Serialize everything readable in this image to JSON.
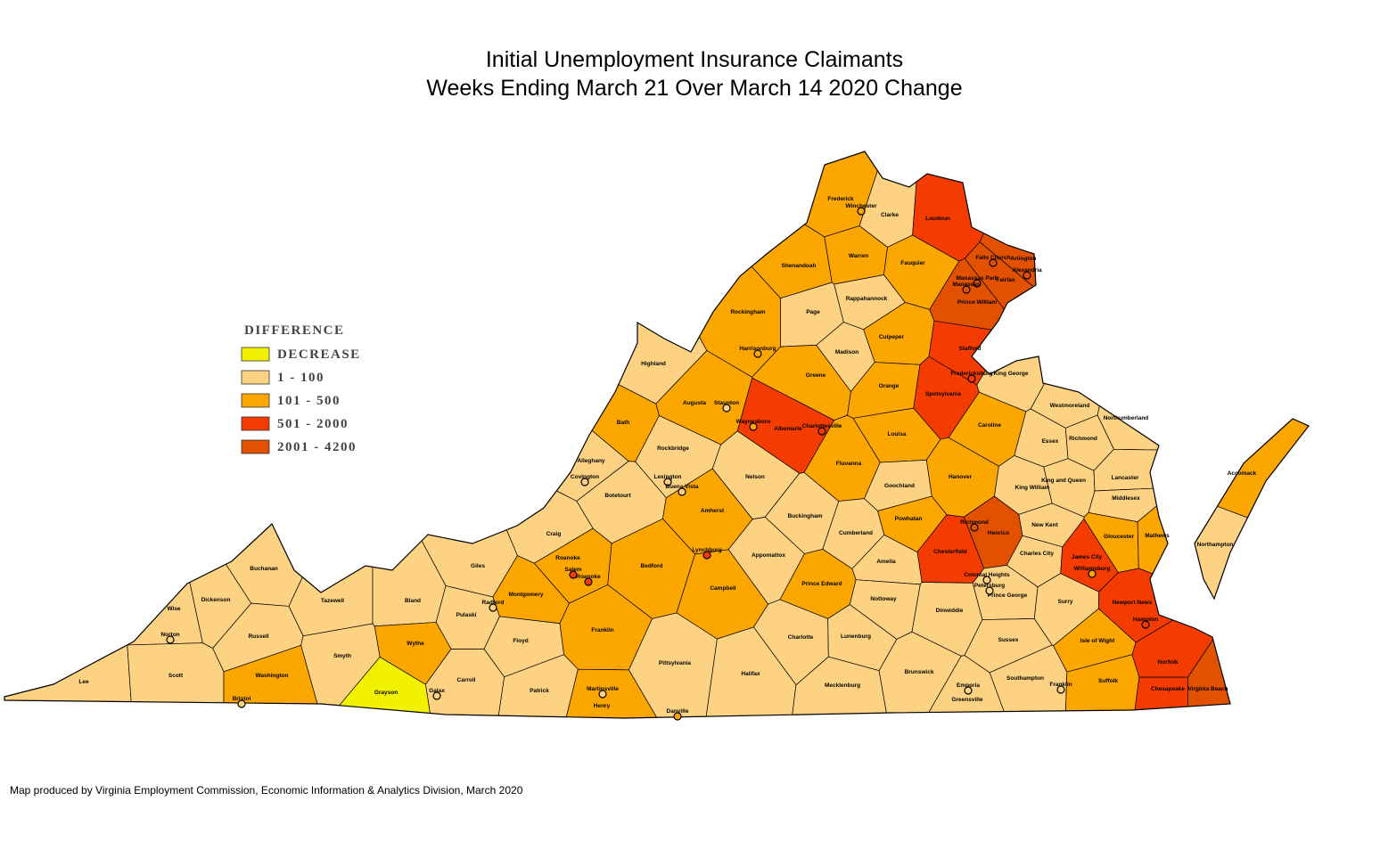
{
  "title": [
    "Initial Unemployment Insurance Claimants",
    "Weeks Ending March 21 Over March 14 2020 Change"
  ],
  "legend": {
    "title": "DIFFERENCE",
    "items": [
      {
        "label": "DECREASE",
        "color": "#f2f200"
      },
      {
        "label": "1 - 100",
        "color": "#fdd283"
      },
      {
        "label": "101 - 500",
        "color": "#fca600"
      },
      {
        "label": "501 - 2000",
        "color": "#f53c00"
      },
      {
        "label": "2001 - 4200",
        "color": "#e25100"
      }
    ]
  },
  "regions": [
    {
      "name": "Frederick",
      "class": 2
    },
    {
      "name": "Clarke",
      "class": 1
    },
    {
      "name": "Loudoun",
      "class": 3
    },
    {
      "name": "Fairfax",
      "class": 4
    },
    {
      "name": "Arlington",
      "class": 4
    },
    {
      "name": "Prince William",
      "class": 4
    },
    {
      "name": "Warren",
      "class": 2
    },
    {
      "name": "Shenandoah",
      "class": 2
    },
    {
      "name": "Fauquier",
      "class": 2
    },
    {
      "name": "Rappahannock",
      "class": 1
    },
    {
      "name": "Page",
      "class": 1
    },
    {
      "name": "Rockingham",
      "class": 2
    },
    {
      "name": "Culpeper",
      "class": 2
    },
    {
      "name": "Madison",
      "class": 1
    },
    {
      "name": "Stafford",
      "class": 3
    },
    {
      "name": "Highland",
      "class": 1
    },
    {
      "name": "Augusta",
      "class": 2
    },
    {
      "name": "Greene",
      "class": 2
    },
    {
      "name": "Orange",
      "class": 2
    },
    {
      "name": "Spotsylvania",
      "class": 3
    },
    {
      "name": "King George",
      "class": 1
    },
    {
      "name": "Westmoreland",
      "class": 1
    },
    {
      "name": "Northumberland",
      "class": 1
    },
    {
      "name": "Bath",
      "class": 2
    },
    {
      "name": "Albemarle",
      "class": 3
    },
    {
      "name": "Louisa",
      "class": 2
    },
    {
      "name": "Caroline",
      "class": 2
    },
    {
      "name": "Essex",
      "class": 1
    },
    {
      "name": "Richmond",
      "class": 1
    },
    {
      "name": "Accomack",
      "class": 2
    },
    {
      "name": "Rockbridge",
      "class": 1
    },
    {
      "name": "Alleghany",
      "class": 1
    },
    {
      "name": "Nelson",
      "class": 1
    },
    {
      "name": "Fluvanna",
      "class": 2
    },
    {
      "name": "Hanover",
      "class": 2
    },
    {
      "name": "King and Queen",
      "class": 1
    },
    {
      "name": "King William",
      "class": 1
    },
    {
      "name": "Lancaster",
      "class": 1
    },
    {
      "name": "Goochland",
      "class": 1
    },
    {
      "name": "Middlesex",
      "class": 1
    },
    {
      "name": "Botetourt",
      "class": 1
    },
    {
      "name": "Amherst",
      "class": 2
    },
    {
      "name": "Buckingham",
      "class": 1
    },
    {
      "name": "Powhatan",
      "class": 2
    },
    {
      "name": "Henrico",
      "class": 4
    },
    {
      "name": "New Kent",
      "class": 1
    },
    {
      "name": "Gloucester",
      "class": 2
    },
    {
      "name": "Mathews",
      "class": 2
    },
    {
      "name": "Craig",
      "class": 1
    },
    {
      "name": "Giles",
      "class": 1
    },
    {
      "name": "Buchanan",
      "class": 1
    },
    {
      "name": "Roanoke",
      "class": 2
    },
    {
      "name": "Bedford",
      "class": 2
    },
    {
      "name": "Appomattox",
      "class": 1
    },
    {
      "name": "Cumberland",
      "class": 1
    },
    {
      "name": "Chesterfield",
      "class": 3
    },
    {
      "name": "Charles City",
      "class": 1
    },
    {
      "name": "James City",
      "class": 3
    },
    {
      "name": "Amelia",
      "class": 1
    },
    {
      "name": "Northampton",
      "class": 1
    },
    {
      "name": "Wise",
      "class": 1
    },
    {
      "name": "Dickenson",
      "class": 1
    },
    {
      "name": "Tazewell",
      "class": 1
    },
    {
      "name": "Bland",
      "class": 1
    },
    {
      "name": "Pulaski",
      "class": 1
    },
    {
      "name": "Montgomery",
      "class": 2
    },
    {
      "name": "Campbell",
      "class": 2
    },
    {
      "name": "Prince Edward",
      "class": 2
    },
    {
      "name": "Nottoway",
      "class": 1
    },
    {
      "name": "Dinwiddie",
      "class": 1
    },
    {
      "name": "Prince George",
      "class": 1
    },
    {
      "name": "Surry",
      "class": 1
    },
    {
      "name": "Russell",
      "class": 1
    },
    {
      "name": "Wythe",
      "class": 2
    },
    {
      "name": "Floyd",
      "class": 1
    },
    {
      "name": "Franklin",
      "class": 2
    },
    {
      "name": "Charlotte",
      "class": 1
    },
    {
      "name": "Lunenburg",
      "class": 1
    },
    {
      "name": "Sussex",
      "class": 1
    },
    {
      "name": "Isle of Wight",
      "class": 2
    },
    {
      "name": "Smyth",
      "class": 1
    },
    {
      "name": "Pittsylvania",
      "class": 1
    },
    {
      "name": "Halifax",
      "class": 1
    },
    {
      "name": "Mecklenburg",
      "class": 1
    },
    {
      "name": "Brunswick",
      "class": 1
    },
    {
      "name": "Southampton",
      "class": 1
    },
    {
      "name": "Suffolk",
      "class": 2
    },
    {
      "name": "Lee",
      "class": 1
    },
    {
      "name": "Scott",
      "class": 1
    },
    {
      "name": "Washington",
      "class": 2
    },
    {
      "name": "Carroll",
      "class": 1
    },
    {
      "name": "Patrick",
      "class": 1
    },
    {
      "name": "Henry",
      "class": 2
    },
    {
      "name": "Grayson",
      "class": 0
    },
    {
      "name": "Greensville",
      "class": 1
    },
    {
      "name": "Chesapeake",
      "class": 3
    },
    {
      "name": "Virginia Beach",
      "class": 4
    },
    {
      "name": "Norfolk",
      "class": 3
    },
    {
      "name": "Newport News",
      "class": 3
    }
  ],
  "cities": [
    {
      "name": "Winchester",
      "class": 2
    },
    {
      "name": "Falls Church",
      "class": 4
    },
    {
      "name": "Alexandria",
      "class": 4
    },
    {
      "name": "Manassas Park",
      "class": 4
    },
    {
      "name": "Manassas",
      "class": 4
    },
    {
      "name": "Harrisonburg",
      "class": 2
    },
    {
      "name": "Fredericksburg",
      "class": 3
    },
    {
      "name": "Staunton",
      "class": 1
    },
    {
      "name": "Waynesboro",
      "class": 2
    },
    {
      "name": "Charlottesville",
      "class": 3
    },
    {
      "name": "Covington",
      "class": 1
    },
    {
      "name": "Lexington",
      "class": 1
    },
    {
      "name": "Buena Vista",
      "class": 1
    },
    {
      "name": "Lynchburg",
      "class": 3
    },
    {
      "name": "Salem",
      "class": 3
    },
    {
      "name": "Roanoke",
      "class": 3
    },
    {
      "name": "Richmond",
      "class": 4
    },
    {
      "name": "Colonial Heights",
      "class": 1
    },
    {
      "name": "Petersburg",
      "class": 1
    },
    {
      "name": "Williamsburg",
      "class": 2
    },
    {
      "name": "Radford",
      "class": 1
    },
    {
      "name": "Norton",
      "class": 1
    },
    {
      "name": "Bristol",
      "class": 1
    },
    {
      "name": "Galax",
      "class": 1
    },
    {
      "name": "Martinsville",
      "class": 1
    },
    {
      "name": "Danville",
      "class": 2
    },
    {
      "name": "Emporia",
      "class": 1
    },
    {
      "name": "Franklin",
      "class": 1
    },
    {
      "name": "Hampton",
      "class": 3
    }
  ],
  "footer": "Map produced by Virginia Employment Commission, Economic Information & Analytics Division,  March 2020"
}
